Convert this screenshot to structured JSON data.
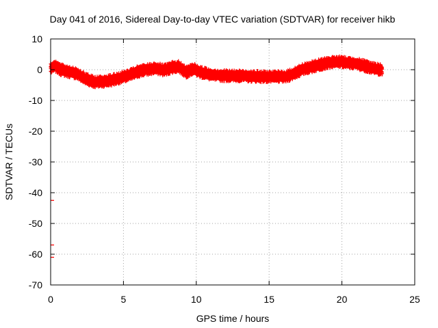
{
  "chart_data": {
    "type": "scatter",
    "title": "Day 041 of 2016, Sidereal Day-to-day VTEC variation (SDTVAR) for receiver hikb",
    "xlabel": "GPS time / hours",
    "ylabel": "SDTVAR / TECUs",
    "xlim": [
      0,
      25
    ],
    "ylim": [
      -70,
      10
    ],
    "xticks": [
      0,
      5,
      10,
      15,
      20,
      25
    ],
    "yticks": [
      10,
      0,
      -10,
      -20,
      -30,
      -40,
      -50,
      -60,
      -70
    ],
    "grid": true,
    "marker": "errorbar",
    "color": "#ff0000",
    "series": [
      {
        "name": "SDTVAR",
        "band_center": [
          [
            0.0,
            0.5
          ],
          [
            0.3,
            1.2
          ],
          [
            0.7,
            0.0
          ],
          [
            1.2,
            -0.6
          ],
          [
            1.8,
            -1.2
          ],
          [
            2.4,
            -3.0
          ],
          [
            3.0,
            -4.0
          ],
          [
            3.6,
            -3.8
          ],
          [
            4.2,
            -3.4
          ],
          [
            4.8,
            -2.6
          ],
          [
            5.4,
            -1.8
          ],
          [
            6.0,
            -0.6
          ],
          [
            6.6,
            0.0
          ],
          [
            7.2,
            0.5
          ],
          [
            7.8,
            -0.2
          ],
          [
            8.4,
            0.8
          ],
          [
            8.8,
            1.0
          ],
          [
            9.3,
            -0.8
          ],
          [
            9.8,
            0.3
          ],
          [
            10.3,
            -0.8
          ],
          [
            11.0,
            -1.6
          ],
          [
            11.7,
            -1.9
          ],
          [
            12.5,
            -2.0
          ],
          [
            13.2,
            -2.0
          ],
          [
            14.0,
            -2.2
          ],
          [
            14.8,
            -2.3
          ],
          [
            15.5,
            -2.3
          ],
          [
            16.2,
            -2.2
          ],
          [
            16.8,
            -1.0
          ],
          [
            17.4,
            0.3
          ],
          [
            18.0,
            1.0
          ],
          [
            18.6,
            1.8
          ],
          [
            19.2,
            2.4
          ],
          [
            19.8,
            2.6
          ],
          [
            20.4,
            2.2
          ],
          [
            21.0,
            2.0
          ],
          [
            21.6,
            1.2
          ],
          [
            22.2,
            0.4
          ],
          [
            22.8,
            0.0
          ]
        ],
        "outliers": [
          [
            0.0,
            -42.5
          ],
          [
            0.0,
            -57.0
          ],
          [
            0.0,
            -61.0
          ]
        ]
      }
    ]
  }
}
